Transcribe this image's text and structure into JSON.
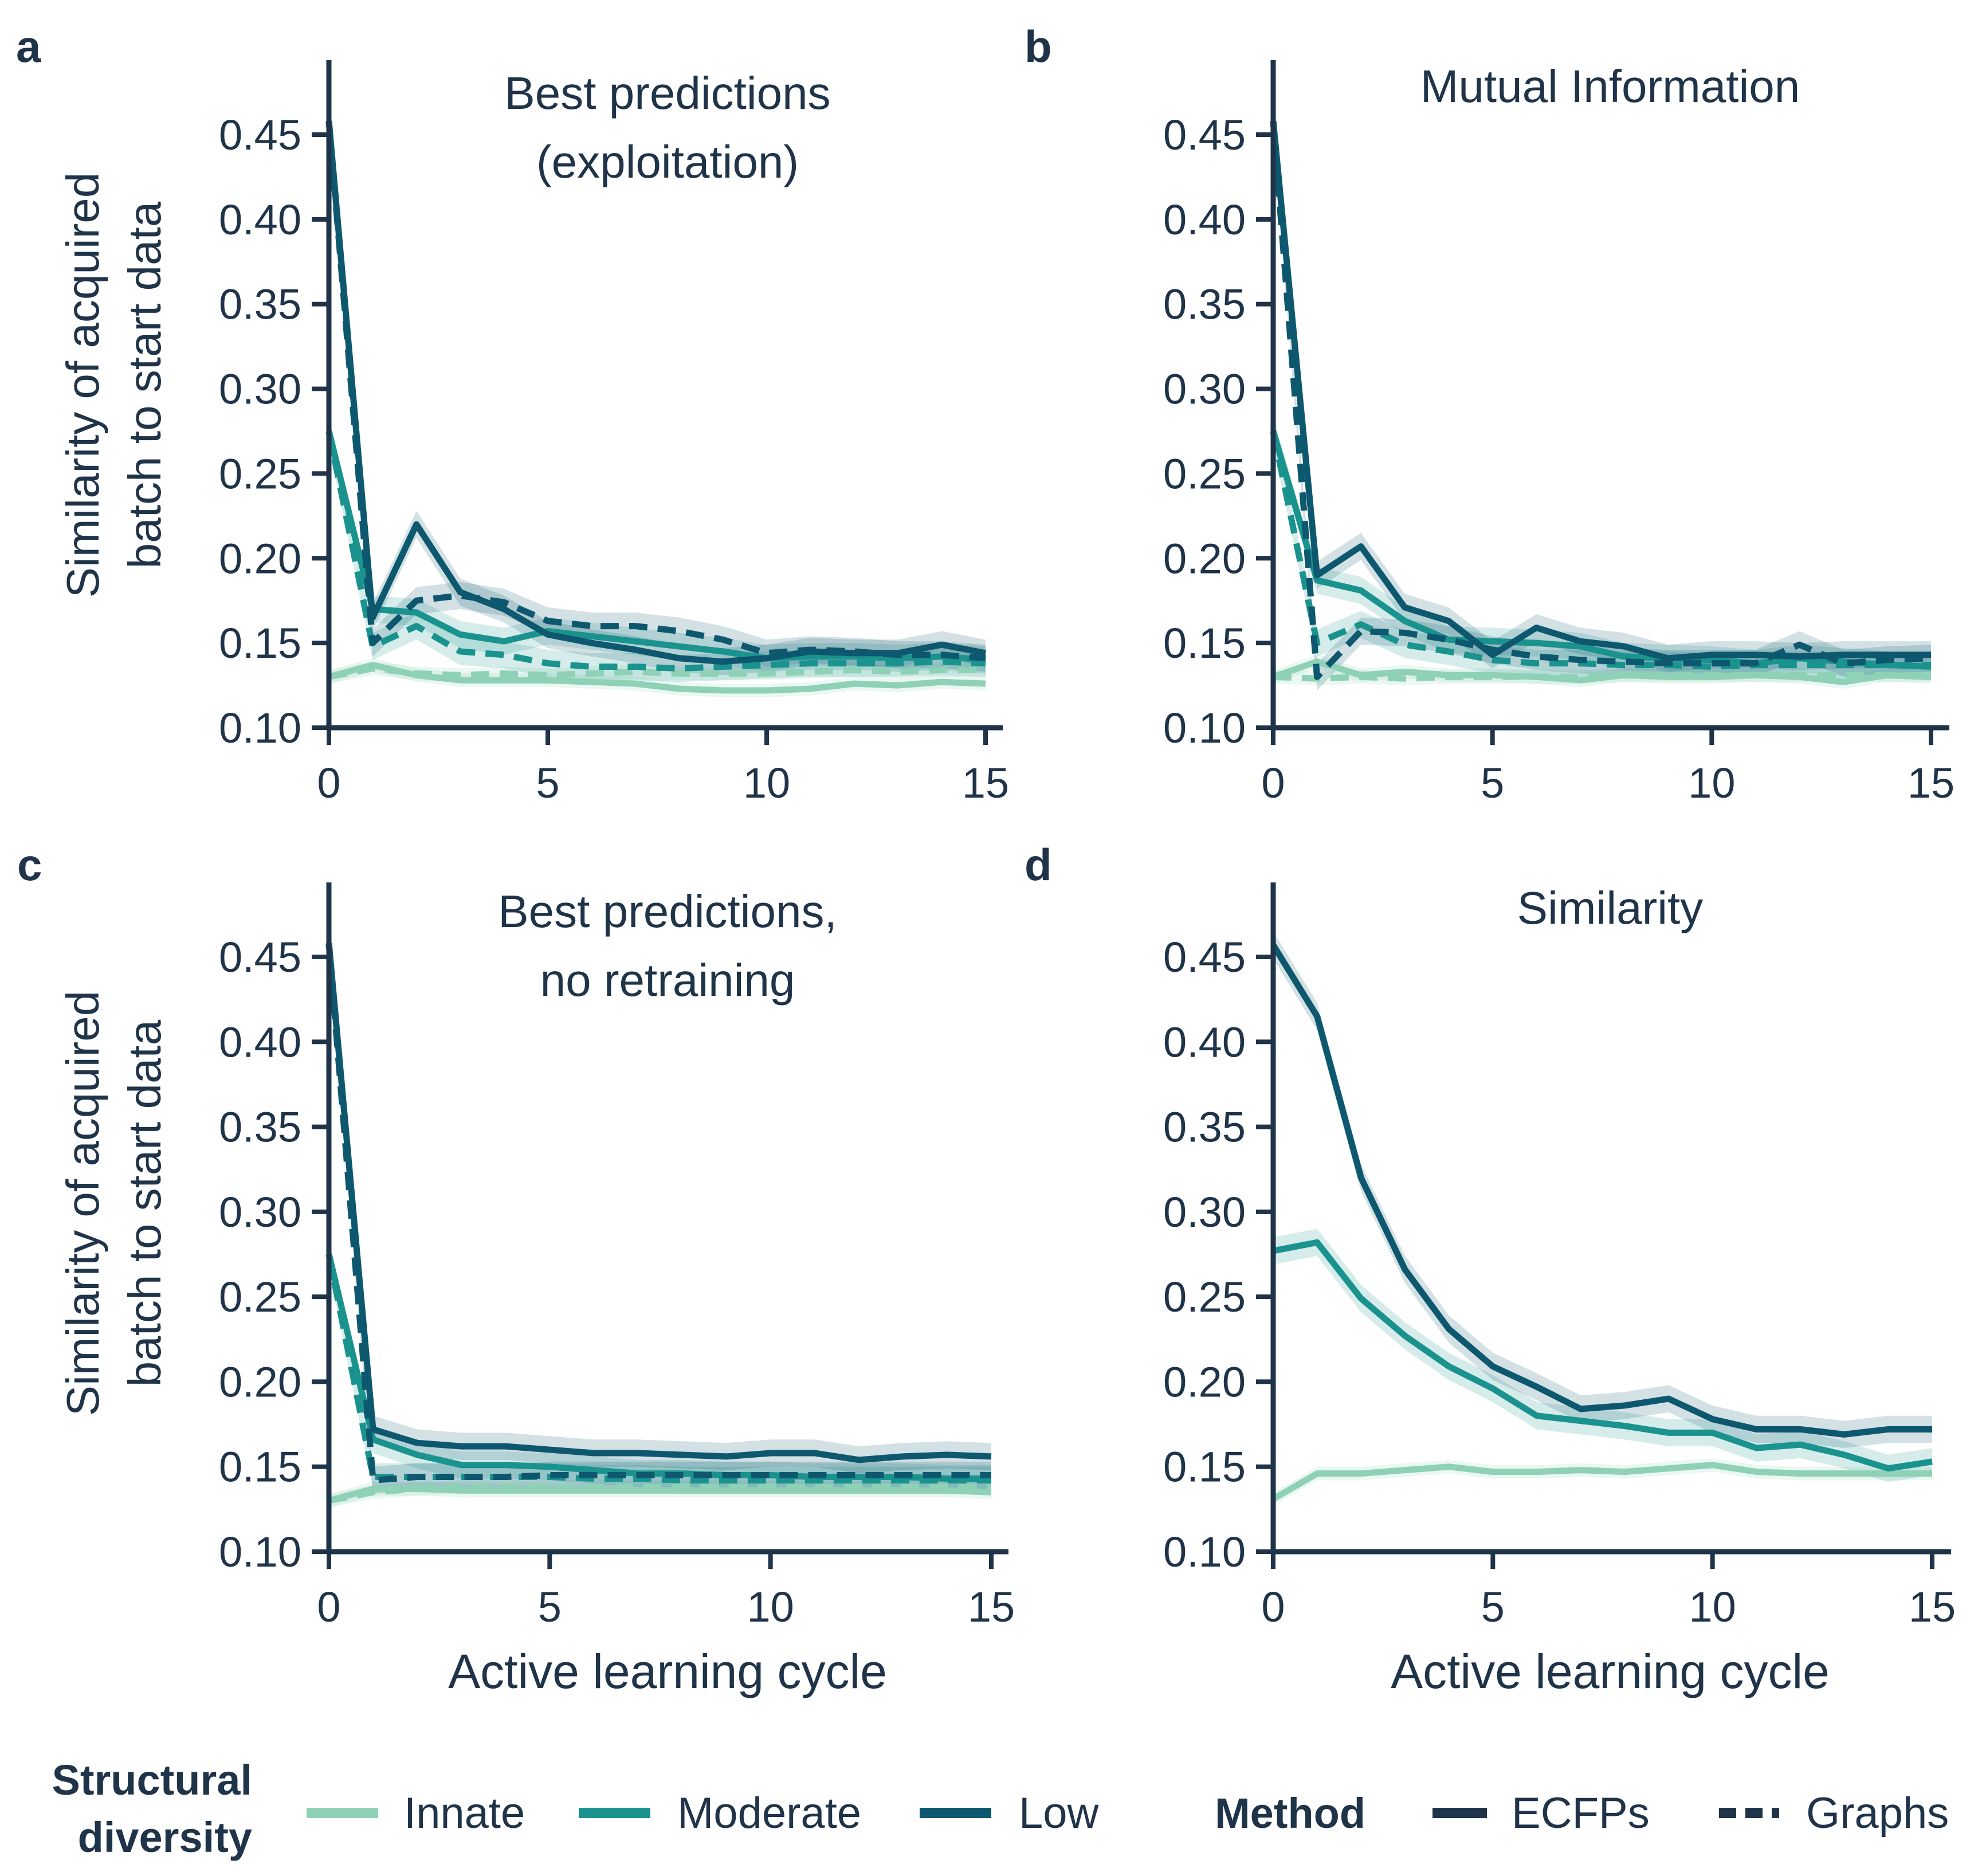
{
  "figure": {
    "text_color": "#1f3349",
    "axis_color": "#1f3349",
    "shared_ylabel_lines": [
      "Similarity of acquired",
      "batch to start data"
    ],
    "shared_xlabel": "Active learning cycle",
    "colors": {
      "Innate": "#8fd1b6",
      "Moderate": "#1a938f",
      "Low": "#0d586f"
    }
  },
  "legend": {
    "diversity_title_lines": [
      "Structural",
      "diversity"
    ],
    "diversity_items": [
      {
        "label": "Innate",
        "color": "#8fd1b6"
      },
      {
        "label": "Moderate",
        "color": "#1a938f"
      },
      {
        "label": "Low",
        "color": "#0d586f"
      }
    ],
    "method_title": "Method",
    "method_items": [
      {
        "label": "ECFPs",
        "style": "solid",
        "color": "#1f3349"
      },
      {
        "label": "Graphs",
        "style": "dashed",
        "color": "#1f3349"
      }
    ]
  },
  "chart_data": [
    {
      "panel": "a",
      "type": "line",
      "title_lines": [
        "Best predictions",
        "(exploitation)"
      ],
      "xlabel": "",
      "ylabel": "Similarity of acquired batch to start data",
      "xlim": [
        0,
        15
      ],
      "ylim": [
        0.1,
        0.5
      ],
      "xticks": [
        0,
        5,
        10,
        15
      ],
      "yticks": [
        "0.10",
        "0.15",
        "0.20",
        "0.25",
        "0.30",
        "0.35",
        "0.40",
        "0.45"
      ],
      "x": [
        0,
        1,
        2,
        3,
        4,
        5,
        6,
        7,
        8,
        9,
        10,
        11,
        12,
        13,
        14,
        15
      ],
      "series": [
        {
          "diversity": "Innate",
          "method": "ECFPs",
          "values": [
            0.13,
            0.137,
            0.131,
            0.128,
            0.128,
            0.128,
            0.127,
            0.126,
            0.123,
            0.122,
            0.122,
            0.123,
            0.126,
            0.125,
            0.127,
            0.126
          ]
        },
        {
          "diversity": "Innate",
          "method": "Graphs",
          "values": [
            0.13,
            0.135,
            0.132,
            0.131,
            0.132,
            0.131,
            0.132,
            0.133,
            0.132,
            0.132,
            0.132,
            0.133,
            0.134,
            0.133,
            0.134,
            0.134
          ]
        },
        {
          "diversity": "Moderate",
          "method": "ECFPs",
          "values": [
            0.275,
            0.17,
            0.168,
            0.155,
            0.151,
            0.157,
            0.154,
            0.151,
            0.148,
            0.145,
            0.141,
            0.142,
            0.142,
            0.141,
            0.142,
            0.14
          ]
        },
        {
          "diversity": "Moderate",
          "method": "Graphs",
          "values": [
            0.275,
            0.148,
            0.16,
            0.145,
            0.143,
            0.138,
            0.136,
            0.136,
            0.135,
            0.136,
            0.137,
            0.138,
            0.138,
            0.138,
            0.139,
            0.138
          ]
        },
        {
          "diversity": "Low",
          "method": "ECFPs",
          "values": [
            0.458,
            0.165,
            0.22,
            0.18,
            0.17,
            0.155,
            0.15,
            0.146,
            0.141,
            0.139,
            0.141,
            0.145,
            0.144,
            0.144,
            0.149,
            0.144
          ]
        },
        {
          "diversity": "Low",
          "method": "Graphs",
          "values": [
            0.458,
            0.15,
            0.175,
            0.178,
            0.174,
            0.163,
            0.16,
            0.16,
            0.157,
            0.152,
            0.144,
            0.146,
            0.145,
            0.143,
            0.143,
            0.141
          ]
        }
      ]
    },
    {
      "panel": "b",
      "type": "line",
      "title_lines": [
        "Mutual Information"
      ],
      "xlabel": "",
      "ylabel": "",
      "xlim": [
        0,
        15
      ],
      "ylim": [
        0.1,
        0.5
      ],
      "xticks": [
        0,
        5,
        10,
        15
      ],
      "yticks": [
        "0.10",
        "0.15",
        "0.20",
        "0.25",
        "0.30",
        "0.35",
        "0.40",
        "0.45"
      ],
      "x": [
        0,
        1,
        2,
        3,
        4,
        5,
        6,
        7,
        8,
        9,
        10,
        11,
        12,
        13,
        14,
        15
      ],
      "series": [
        {
          "diversity": "Innate",
          "method": "ECFPs",
          "values": [
            0.13,
            0.139,
            0.131,
            0.133,
            0.131,
            0.131,
            0.13,
            0.128,
            0.131,
            0.13,
            0.13,
            0.131,
            0.13,
            0.127,
            0.131,
            0.13
          ]
        },
        {
          "diversity": "Innate",
          "method": "Graphs",
          "values": [
            0.13,
            0.129,
            0.13,
            0.129,
            0.13,
            0.13,
            0.13,
            0.13,
            0.131,
            0.131,
            0.131,
            0.131,
            0.131,
            0.131,
            0.131,
            0.131
          ]
        },
        {
          "diversity": "Moderate",
          "method": "ECFPs",
          "values": [
            0.275,
            0.187,
            0.181,
            0.163,
            0.152,
            0.151,
            0.15,
            0.148,
            0.142,
            0.141,
            0.14,
            0.138,
            0.141,
            0.139,
            0.137,
            0.136
          ]
        },
        {
          "diversity": "Moderate",
          "method": "Graphs",
          "values": [
            0.275,
            0.15,
            0.161,
            0.149,
            0.145,
            0.14,
            0.138,
            0.138,
            0.137,
            0.137,
            0.136,
            0.137,
            0.137,
            0.137,
            0.137,
            0.137
          ]
        },
        {
          "diversity": "Low",
          "method": "ECFPs",
          "values": [
            0.458,
            0.19,
            0.207,
            0.171,
            0.163,
            0.143,
            0.159,
            0.151,
            0.148,
            0.141,
            0.143,
            0.143,
            0.142,
            0.143,
            0.143,
            0.143
          ]
        },
        {
          "diversity": "Low",
          "method": "Graphs",
          "values": [
            0.458,
            0.13,
            0.157,
            0.156,
            0.152,
            0.146,
            0.142,
            0.14,
            0.139,
            0.138,
            0.138,
            0.138,
            0.149,
            0.138,
            0.14,
            0.141
          ]
        }
      ]
    },
    {
      "panel": "c",
      "type": "line",
      "title_lines": [
        "Best predictions,",
        "no retraining"
      ],
      "xlabel": "Active learning cycle",
      "ylabel": "Similarity of acquired batch to start data",
      "xlim": [
        0,
        15
      ],
      "ylim": [
        0.1,
        0.5
      ],
      "xticks": [
        0,
        5,
        10,
        15
      ],
      "yticks": [
        "0.10",
        "0.15",
        "0.20",
        "0.25",
        "0.30",
        "0.35",
        "0.40",
        "0.45"
      ],
      "x": [
        0,
        1,
        2,
        3,
        4,
        5,
        6,
        7,
        8,
        9,
        10,
        11,
        12,
        13,
        14,
        15
      ],
      "series": [
        {
          "diversity": "Innate",
          "method": "ECFPs",
          "values": [
            0.13,
            0.137,
            0.137,
            0.136,
            0.136,
            0.136,
            0.136,
            0.136,
            0.136,
            0.136,
            0.136,
            0.136,
            0.136,
            0.136,
            0.136,
            0.135
          ]
        },
        {
          "diversity": "Innate",
          "method": "Graphs",
          "values": [
            0.13,
            0.135,
            0.137,
            0.138,
            0.138,
            0.138,
            0.138,
            0.138,
            0.138,
            0.138,
            0.138,
            0.138,
            0.138,
            0.138,
            0.138,
            0.138
          ]
        },
        {
          "diversity": "Moderate",
          "method": "ECFPs",
          "values": [
            0.275,
            0.166,
            0.157,
            0.151,
            0.151,
            0.15,
            0.148,
            0.146,
            0.146,
            0.145,
            0.145,
            0.144,
            0.144,
            0.144,
            0.143,
            0.143
          ]
        },
        {
          "diversity": "Moderate",
          "method": "Graphs",
          "values": [
            0.275,
            0.144,
            0.144,
            0.144,
            0.144,
            0.144,
            0.143,
            0.143,
            0.142,
            0.142,
            0.142,
            0.142,
            0.142,
            0.142,
            0.142,
            0.142
          ]
        },
        {
          "diversity": "Low",
          "method": "ECFPs",
          "values": [
            0.458,
            0.172,
            0.164,
            0.162,
            0.162,
            0.16,
            0.158,
            0.158,
            0.157,
            0.156,
            0.158,
            0.158,
            0.154,
            0.156,
            0.157,
            0.156
          ]
        },
        {
          "diversity": "Low",
          "method": "Graphs",
          "values": [
            0.458,
            0.142,
            0.144,
            0.144,
            0.144,
            0.145,
            0.145,
            0.145,
            0.145,
            0.145,
            0.145,
            0.145,
            0.145,
            0.145,
            0.145,
            0.145
          ]
        }
      ]
    },
    {
      "panel": "d",
      "type": "line",
      "title_lines": [
        "Similarity"
      ],
      "xlabel": "Active learning cycle",
      "ylabel": "",
      "xlim": [
        0,
        15
      ],
      "ylim": [
        0.1,
        0.5
      ],
      "xticks": [
        0,
        5,
        10,
        15
      ],
      "yticks": [
        "0.10",
        "0.15",
        "0.20",
        "0.25",
        "0.30",
        "0.35",
        "0.40",
        "0.45"
      ],
      "x": [
        0,
        1,
        2,
        3,
        4,
        5,
        6,
        7,
        8,
        9,
        10,
        11,
        12,
        13,
        14,
        15
      ],
      "series": [
        {
          "diversity": "Innate",
          "method": "ECFPs",
          "values": [
            0.131,
            0.146,
            0.146,
            0.148,
            0.15,
            0.147,
            0.147,
            0.148,
            0.147,
            0.149,
            0.151,
            0.147,
            0.146,
            0.146,
            0.146,
            0.146
          ]
        },
        {
          "diversity": "Moderate",
          "method": "ECFPs",
          "values": [
            0.277,
            0.282,
            0.249,
            0.227,
            0.209,
            0.196,
            0.18,
            0.177,
            0.174,
            0.17,
            0.17,
            0.161,
            0.163,
            0.157,
            0.149,
            0.153
          ]
        },
        {
          "diversity": "Low",
          "method": "ECFPs",
          "values": [
            0.457,
            0.415,
            0.32,
            0.266,
            0.231,
            0.209,
            0.197,
            0.184,
            0.186,
            0.19,
            0.178,
            0.172,
            0.172,
            0.169,
            0.172,
            0.172
          ]
        }
      ]
    }
  ]
}
